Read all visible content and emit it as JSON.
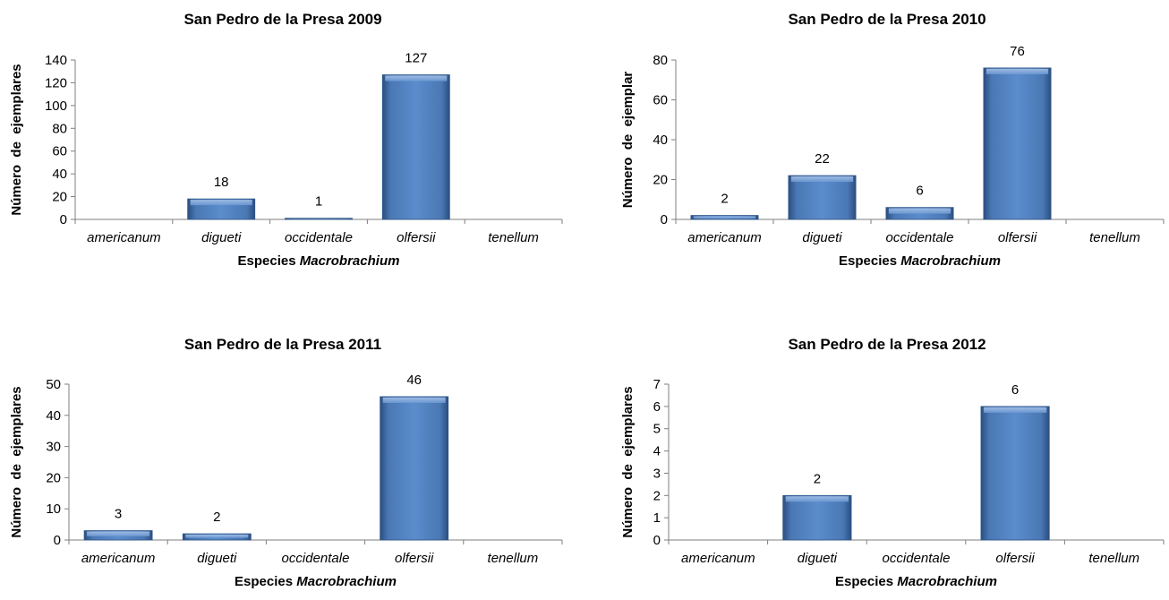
{
  "chart_data": [
    {
      "type": "bar",
      "title": "San Pedro de la Presa 2009",
      "categories": [
        "americanum",
        "digueti",
        "occidentale",
        "olfersii",
        "tenellum"
      ],
      "values": [
        0,
        18,
        1,
        127,
        0
      ],
      "data_labels": [
        "",
        "18",
        "1",
        "127",
        ""
      ],
      "xlabel": "Especies",
      "xlabel_italic": "Macrobrachium",
      "ylabel": "Número  de  ejemplares",
      "ylim": [
        0,
        140
      ],
      "yticks": [
        0,
        20,
        40,
        60,
        80,
        100,
        120,
        140
      ],
      "grid": false,
      "bar_color": "#4f81bd"
    },
    {
      "type": "bar",
      "title": "San Pedro de la Presa 2010",
      "categories": [
        "americanum",
        "digueti",
        "occidentale",
        "olfersii",
        "tenellum"
      ],
      "values": [
        2,
        22,
        6,
        76,
        0
      ],
      "data_labels": [
        "2",
        "22",
        "6",
        "76",
        ""
      ],
      "xlabel": "Especies",
      "xlabel_italic": "Macrobrachium",
      "ylabel": "Número  de  ejemplar",
      "ylim": [
        0,
        80
      ],
      "yticks": [
        0,
        20,
        40,
        60,
        80
      ],
      "grid": false,
      "bar_color": "#4f81bd"
    },
    {
      "type": "bar",
      "title": "San Pedro de la Presa 2011",
      "categories": [
        "americanum",
        "digueti",
        "occidentale",
        "olfersii",
        "tenellum"
      ],
      "values": [
        3,
        2,
        0,
        46,
        0
      ],
      "data_labels": [
        "3",
        "2",
        "",
        "46",
        ""
      ],
      "xlabel": "Especies",
      "xlabel_italic": "Macrobrachium",
      "ylabel": "Número  de  ejemplares",
      "ylim": [
        0,
        50
      ],
      "yticks": [
        0,
        10,
        20,
        30,
        40,
        50
      ],
      "grid": false,
      "bar_color": "#4f81bd"
    },
    {
      "type": "bar",
      "title": "San Pedro de la Presa 2012",
      "categories": [
        "americanum",
        "digueti",
        "occidentale",
        "olfersii",
        "tenellum"
      ],
      "values": [
        0,
        2,
        0,
        6,
        0
      ],
      "data_labels": [
        "",
        "2",
        "",
        "6",
        ""
      ],
      "xlabel": "Especies",
      "xlabel_italic": "Macrobrachium",
      "ylabel": "Número  de  ejemplares",
      "ylim": [
        0,
        7
      ],
      "yticks": [
        0,
        1,
        2,
        3,
        4,
        5,
        6,
        7
      ],
      "grid": false,
      "bar_color": "#4f81bd"
    }
  ]
}
